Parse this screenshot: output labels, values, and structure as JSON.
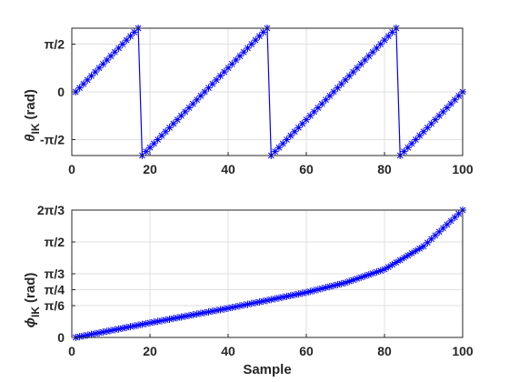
{
  "chart_data": [
    {
      "type": "line",
      "marker": "asterisk",
      "color": "#0000ff",
      "ylabel": "θ_IK (rad)",
      "ylabel_main": "θ",
      "ylabel_sub": "IK",
      "ylabel_unit": "(rad)",
      "xlim": [
        0,
        100
      ],
      "ylim": [
        -2.0944,
        2.0944
      ],
      "grid": true,
      "x_ticks": [
        0,
        20,
        40,
        60,
        80,
        100
      ],
      "x_tick_labels": [
        "0",
        "20",
        "40",
        "60",
        "80",
        "100"
      ],
      "y_ticks": [
        -1.5708,
        0,
        1.5708
      ],
      "y_tick_labels": [
        "-π/2",
        "0",
        "π/2"
      ],
      "segments": [
        {
          "x_start": 1,
          "x_end": 17,
          "y_start": 0.0,
          "y_end": 2.0944
        },
        {
          "x_start": 18,
          "x_end": 50,
          "y_start": -2.0944,
          "y_end": 2.0944
        },
        {
          "x_start": 51,
          "x_end": 83,
          "y_start": -2.0944,
          "y_end": 2.0944
        },
        {
          "x_start": 84,
          "x_end": 100,
          "y_start": -2.0944,
          "y_end": 0.0
        }
      ]
    },
    {
      "type": "line",
      "marker": "asterisk",
      "color": "#0000ff",
      "ylabel": "ϕ_IK (rad)",
      "ylabel_main": "ϕ",
      "ylabel_sub": "IK",
      "ylabel_unit": "(rad)",
      "xlabel": "Sample",
      "xlim": [
        0,
        100
      ],
      "ylim": [
        0,
        2.0944
      ],
      "grid": true,
      "x_ticks": [
        0,
        20,
        40,
        60,
        80,
        100
      ],
      "x_tick_labels": [
        "0",
        "20",
        "40",
        "60",
        "80",
        "100"
      ],
      "y_ticks": [
        0,
        0.5236,
        0.7854,
        1.0472,
        1.5708,
        2.0944
      ],
      "y_tick_labels": [
        "0",
        "π/6",
        "π/4",
        "π/3",
        "π/2",
        "2π/3"
      ],
      "curve": {
        "x_start": 1,
        "x_end": 100,
        "key_points": [
          [
            1,
            0.0
          ],
          [
            20,
            0.24
          ],
          [
            40,
            0.48
          ],
          [
            50,
            0.61
          ],
          [
            60,
            0.74
          ],
          [
            70,
            0.9
          ],
          [
            80,
            1.12
          ],
          [
            90,
            1.5
          ],
          [
            100,
            2.0944
          ]
        ]
      }
    }
  ]
}
